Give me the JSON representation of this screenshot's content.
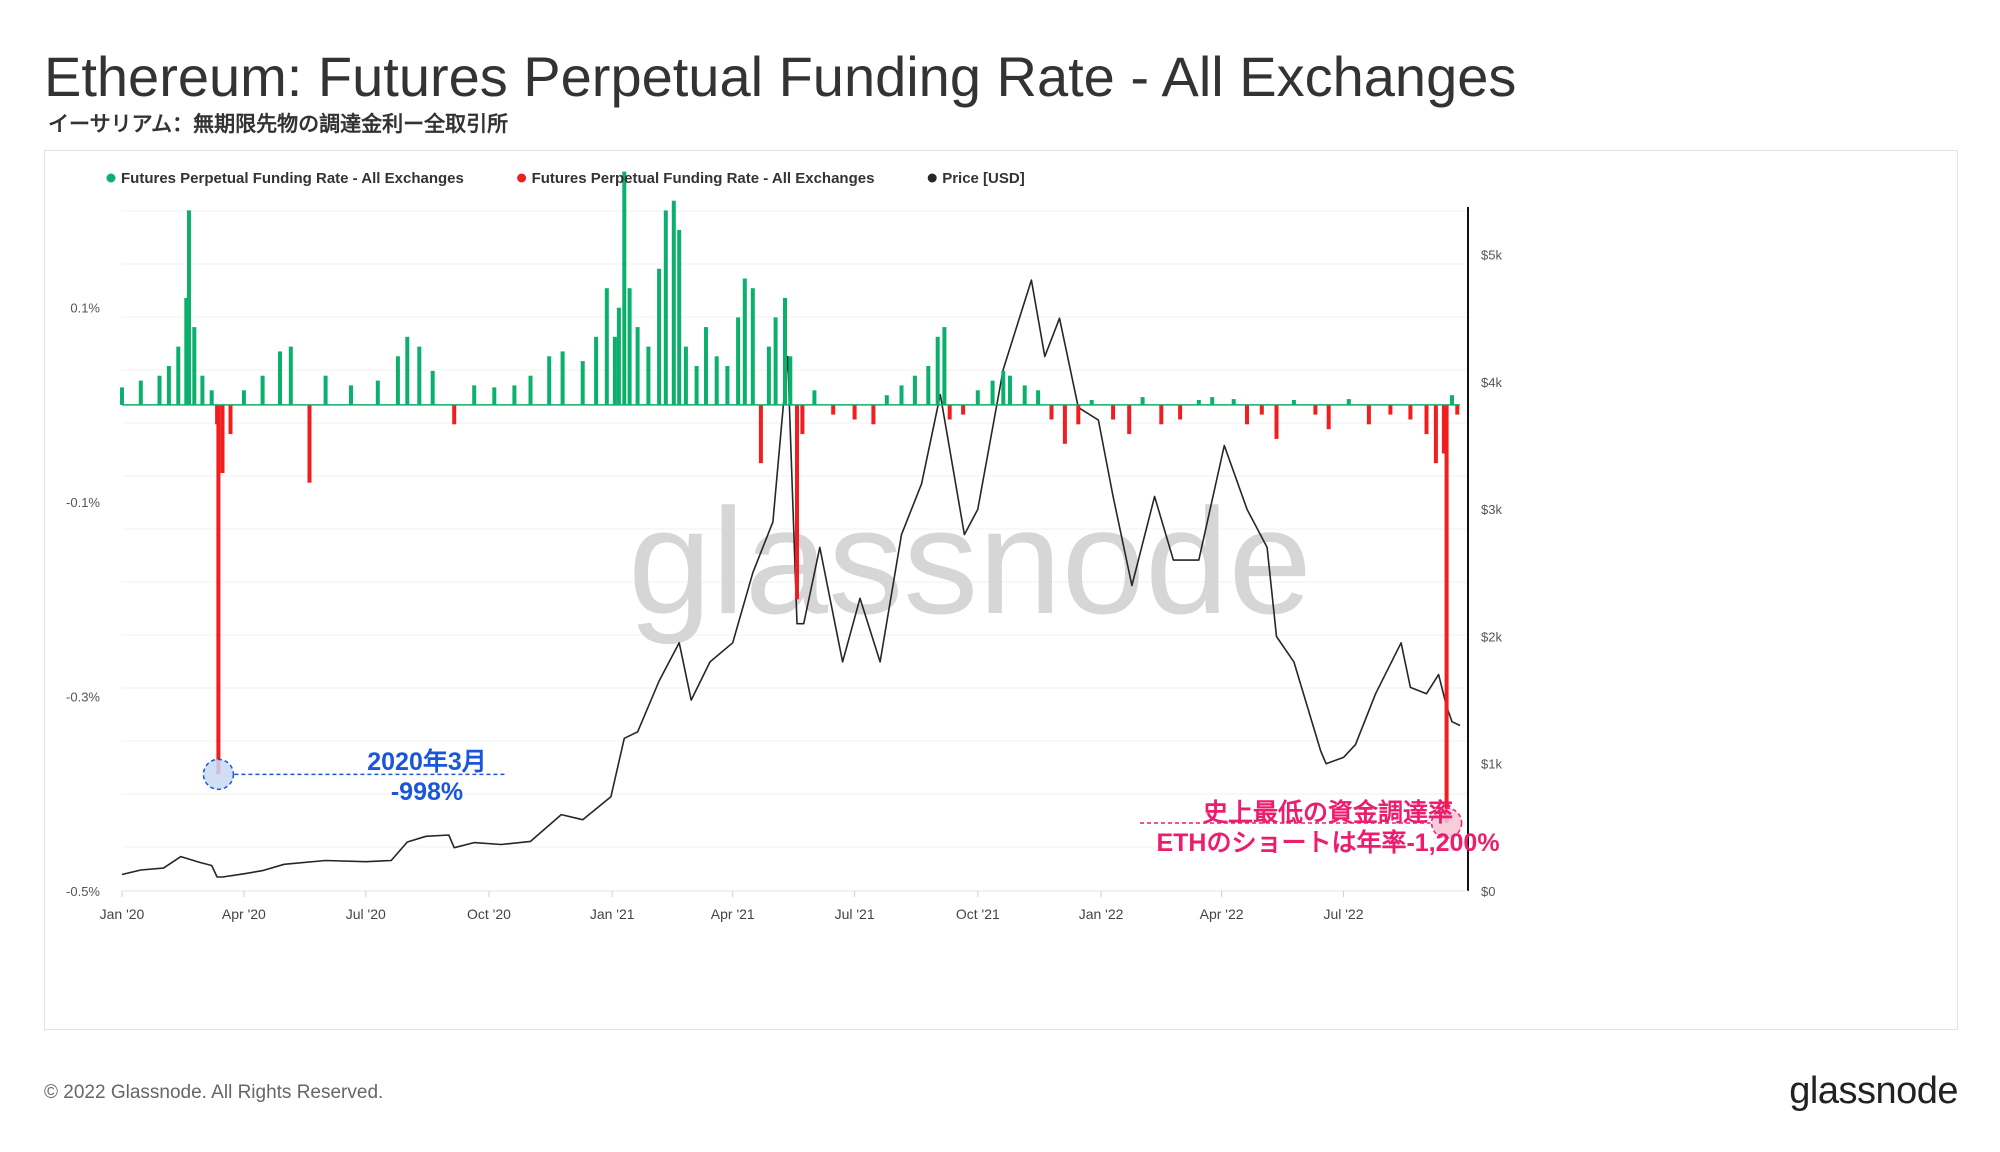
{
  "header": {
    "title": "Ethereum: Futures Perpetual Funding Rate - All Exchanges",
    "subtitle": "イーサリアム：無期限先物の調達金利ー全取引所"
  },
  "footer": {
    "copyright": "© 2022 Glassnode. All Rights Reserved.",
    "logo": "glassnode"
  },
  "watermark": "glassnode",
  "colors": {
    "positive": "#0bb06c",
    "negative": "#f01e1e",
    "price": "#262626",
    "annotation_blue": "#1a56db",
    "annotation_pink": "#ee1c6e"
  },
  "chart_data": {
    "type": "bar",
    "x_axis": {
      "type": "time",
      "range": [
        "2020-01-01",
        "2022-09-26"
      ],
      "ticks": [
        "Jan '20",
        "Apr '20",
        "Jul '20",
        "Oct '20",
        "Jan '21",
        "Apr '21",
        "Jul '21",
        "Oct '21",
        "Jan '22",
        "Apr '22",
        "Jul '22"
      ],
      "tick_dates": [
        "2020-01-01",
        "2020-04-01",
        "2020-07-01",
        "2020-10-01",
        "2021-01-01",
        "2021-04-01",
        "2021-07-01",
        "2021-10-01",
        "2022-01-01",
        "2022-04-01",
        "2022-07-01"
      ]
    },
    "y_axis_left": {
      "unit": "%",
      "ticks": [
        "0.1%",
        "-0.1%",
        "-0.3%",
        "-0.5%"
      ],
      "tick_values": [
        0.1,
        -0.1,
        -0.3,
        -0.5
      ],
      "range": [
        -0.5,
        0.22
      ]
    },
    "y_axis_right": {
      "unit": "USD",
      "ticks": [
        "$0",
        "$1k",
        "$2k",
        "$3k",
        "$4k",
        "$5k"
      ],
      "tick_values": [
        0,
        1000,
        2000,
        3000,
        4000,
        5000
      ],
      "range": [
        0,
        5500
      ]
    },
    "legend": {
      "placement": "top-left",
      "entries": [
        {
          "label": "Futures Perpetual Funding Rate - All Exchanges",
          "color": "#0bb06c"
        },
        {
          "label": "Futures Perpetual Funding Rate - All Exchanges",
          "color": "#f01e1e"
        },
        {
          "label": "Price [USD]",
          "color": "#262626"
        }
      ]
    },
    "series": [
      {
        "name": "Futures Perpetual Funding Rate - All Exchanges",
        "kind": "bar",
        "axis": "left",
        "color_positive": "#0bb06c",
        "color_negative": "#f01e1e",
        "points": [
          [
            "2020-01-01",
            0.018
          ],
          [
            "2020-01-15",
            0.025
          ],
          [
            "2020-01-29",
            0.03
          ],
          [
            "2020-02-05",
            0.04
          ],
          [
            "2020-02-12",
            0.06
          ],
          [
            "2020-02-18",
            0.11
          ],
          [
            "2020-02-20",
            0.2
          ],
          [
            "2020-02-24",
            0.08
          ],
          [
            "2020-03-01",
            0.03
          ],
          [
            "2020-03-08",
            0.015
          ],
          [
            "2020-03-12",
            -0.02
          ],
          [
            "2020-03-13",
            -0.38
          ],
          [
            "2020-03-16",
            -0.07
          ],
          [
            "2020-03-22",
            -0.03
          ],
          [
            "2020-04-01",
            0.015
          ],
          [
            "2020-04-15",
            0.03
          ],
          [
            "2020-04-28",
            0.055
          ],
          [
            "2020-05-06",
            0.06
          ],
          [
            "2020-05-20",
            -0.08
          ],
          [
            "2020-06-01",
            0.03
          ],
          [
            "2020-06-20",
            0.02
          ],
          [
            "2020-07-10",
            0.025
          ],
          [
            "2020-07-25",
            0.05
          ],
          [
            "2020-08-01",
            0.07
          ],
          [
            "2020-08-10",
            0.06
          ],
          [
            "2020-08-20",
            0.035
          ],
          [
            "2020-09-05",
            -0.02
          ],
          [
            "2020-09-20",
            0.02
          ],
          [
            "2020-10-05",
            0.018
          ],
          [
            "2020-10-20",
            0.02
          ],
          [
            "2020-11-01",
            0.03
          ],
          [
            "2020-11-15",
            0.05
          ],
          [
            "2020-11-25",
            0.055
          ],
          [
            "2020-12-10",
            0.045
          ],
          [
            "2020-12-20",
            0.07
          ],
          [
            "2020-12-28",
            0.12
          ],
          [
            "2021-01-03",
            0.07
          ],
          [
            "2021-01-06",
            0.1
          ],
          [
            "2021-01-10",
            0.24
          ],
          [
            "2021-01-14",
            0.12
          ],
          [
            "2021-01-20",
            0.08
          ],
          [
            "2021-01-28",
            0.06
          ],
          [
            "2021-02-05",
            0.14
          ],
          [
            "2021-02-10",
            0.2
          ],
          [
            "2021-02-16",
            0.21
          ],
          [
            "2021-02-20",
            0.18
          ],
          [
            "2021-02-25",
            0.06
          ],
          [
            "2021-03-05",
            0.04
          ],
          [
            "2021-03-12",
            0.08
          ],
          [
            "2021-03-20",
            0.05
          ],
          [
            "2021-03-28",
            0.04
          ],
          [
            "2021-04-05",
            0.09
          ],
          [
            "2021-04-10",
            0.13
          ],
          [
            "2021-04-16",
            0.12
          ],
          [
            "2021-04-22",
            -0.06
          ],
          [
            "2021-04-28",
            0.06
          ],
          [
            "2021-05-03",
            0.09
          ],
          [
            "2021-05-10",
            0.11
          ],
          [
            "2021-05-14",
            0.05
          ],
          [
            "2021-05-19",
            -0.2
          ],
          [
            "2021-05-23",
            -0.03
          ],
          [
            "2021-06-01",
            0.015
          ],
          [
            "2021-06-15",
            -0.01
          ],
          [
            "2021-07-01",
            -0.015
          ],
          [
            "2021-07-15",
            -0.02
          ],
          [
            "2021-07-25",
            0.01
          ],
          [
            "2021-08-05",
            0.02
          ],
          [
            "2021-08-15",
            0.03
          ],
          [
            "2021-08-25",
            0.04
          ],
          [
            "2021-09-01",
            0.07
          ],
          [
            "2021-09-06",
            0.08
          ],
          [
            "2021-09-10",
            -0.015
          ],
          [
            "2021-09-20",
            -0.01
          ],
          [
            "2021-10-01",
            0.015
          ],
          [
            "2021-10-12",
            0.025
          ],
          [
            "2021-10-20",
            0.035
          ],
          [
            "2021-10-25",
            0.03
          ],
          [
            "2021-11-05",
            0.02
          ],
          [
            "2021-11-15",
            0.015
          ],
          [
            "2021-11-25",
            -0.015
          ],
          [
            "2021-12-05",
            -0.04
          ],
          [
            "2021-12-15",
            -0.02
          ],
          [
            "2021-12-25",
            0.005
          ],
          [
            "2022-01-10",
            -0.015
          ],
          [
            "2022-01-22",
            -0.03
          ],
          [
            "2022-02-01",
            0.008
          ],
          [
            "2022-02-15",
            -0.02
          ],
          [
            "2022-03-01",
            -0.015
          ],
          [
            "2022-03-15",
            0.005
          ],
          [
            "2022-03-25",
            0.008
          ],
          [
            "2022-04-10",
            0.006
          ],
          [
            "2022-04-20",
            -0.02
          ],
          [
            "2022-05-01",
            -0.01
          ],
          [
            "2022-05-12",
            -0.035
          ],
          [
            "2022-05-25",
            0.005
          ],
          [
            "2022-06-10",
            -0.01
          ],
          [
            "2022-06-20",
            -0.025
          ],
          [
            "2022-07-05",
            0.006
          ],
          [
            "2022-07-20",
            -0.02
          ],
          [
            "2022-08-05",
            -0.01
          ],
          [
            "2022-08-20",
            -0.015
          ],
          [
            "2022-09-01",
            -0.03
          ],
          [
            "2022-09-08",
            -0.06
          ],
          [
            "2022-09-14",
            -0.05
          ],
          [
            "2022-09-16",
            -0.43
          ],
          [
            "2022-09-20",
            0.01
          ],
          [
            "2022-09-24",
            -0.01
          ]
        ]
      },
      {
        "name": "Price [USD]",
        "kind": "line",
        "axis": "right",
        "color": "#262626",
        "points": [
          [
            "2020-01-01",
            130
          ],
          [
            "2020-01-15",
            165
          ],
          [
            "2020-02-01",
            180
          ],
          [
            "2020-02-14",
            270
          ],
          [
            "2020-02-28",
            225
          ],
          [
            "2020-03-08",
            200
          ],
          [
            "2020-03-12",
            110
          ],
          [
            "2020-03-16",
            110
          ],
          [
            "2020-04-01",
            135
          ],
          [
            "2020-04-15",
            160
          ],
          [
            "2020-05-01",
            210
          ],
          [
            "2020-06-01",
            240
          ],
          [
            "2020-07-01",
            230
          ],
          [
            "2020-07-20",
            240
          ],
          [
            "2020-08-01",
            385
          ],
          [
            "2020-08-15",
            430
          ],
          [
            "2020-09-01",
            440
          ],
          [
            "2020-09-05",
            340
          ],
          [
            "2020-09-20",
            380
          ],
          [
            "2020-10-10",
            365
          ],
          [
            "2020-11-01",
            390
          ],
          [
            "2020-11-24",
            600
          ],
          [
            "2020-12-10",
            560
          ],
          [
            "2020-12-31",
            740
          ],
          [
            "2021-01-10",
            1200
          ],
          [
            "2021-01-20",
            1250
          ],
          [
            "2021-02-05",
            1650
          ],
          [
            "2021-02-20",
            1950
          ],
          [
            "2021-03-01",
            1500
          ],
          [
            "2021-03-15",
            1800
          ],
          [
            "2021-04-01",
            1950
          ],
          [
            "2021-04-16",
            2500
          ],
          [
            "2021-05-01",
            2900
          ],
          [
            "2021-05-12",
            4200
          ],
          [
            "2021-05-19",
            2100
          ],
          [
            "2021-05-24",
            2100
          ],
          [
            "2021-06-05",
            2700
          ],
          [
            "2021-06-22",
            1800
          ],
          [
            "2021-07-05",
            2300
          ],
          [
            "2021-07-20",
            1800
          ],
          [
            "2021-08-05",
            2800
          ],
          [
            "2021-08-20",
            3200
          ],
          [
            "2021-09-03",
            3900
          ],
          [
            "2021-09-21",
            2800
          ],
          [
            "2021-10-01",
            3000
          ],
          [
            "2021-10-20",
            4100
          ],
          [
            "2021-11-10",
            4800
          ],
          [
            "2021-11-20",
            4200
          ],
          [
            "2021-12-01",
            4500
          ],
          [
            "2021-12-15",
            3800
          ],
          [
            "2021-12-30",
            3700
          ],
          [
            "2022-01-10",
            3100
          ],
          [
            "2022-01-24",
            2400
          ],
          [
            "2022-02-10",
            3100
          ],
          [
            "2022-02-24",
            2600
          ],
          [
            "2022-03-15",
            2600
          ],
          [
            "2022-04-03",
            3500
          ],
          [
            "2022-04-20",
            3000
          ],
          [
            "2022-05-05",
            2700
          ],
          [
            "2022-05-12",
            2000
          ],
          [
            "2022-05-25",
            1800
          ],
          [
            "2022-06-14",
            1100
          ],
          [
            "2022-06-18",
            1000
          ],
          [
            "2022-07-01",
            1050
          ],
          [
            "2022-07-10",
            1150
          ],
          [
            "2022-07-25",
            1550
          ],
          [
            "2022-08-13",
            1950
          ],
          [
            "2022-08-20",
            1600
          ],
          [
            "2022-09-01",
            1550
          ],
          [
            "2022-09-10",
            1700
          ],
          [
            "2022-09-16",
            1450
          ],
          [
            "2022-09-20",
            1330
          ],
          [
            "2022-09-26",
            1300
          ]
        ]
      }
    ],
    "annotations": [
      {
        "lines": [
          "2020年3月",
          "-998%"
        ],
        "date": "2020-03-13",
        "value": -0.38,
        "color": "#1a56db"
      },
      {
        "lines": [
          "史上最低の資金調達率",
          "ETHのショートは年率-1,200%"
        ],
        "date": "2022-09-16",
        "value": -0.43,
        "color": "#ee1c6e"
      }
    ]
  }
}
